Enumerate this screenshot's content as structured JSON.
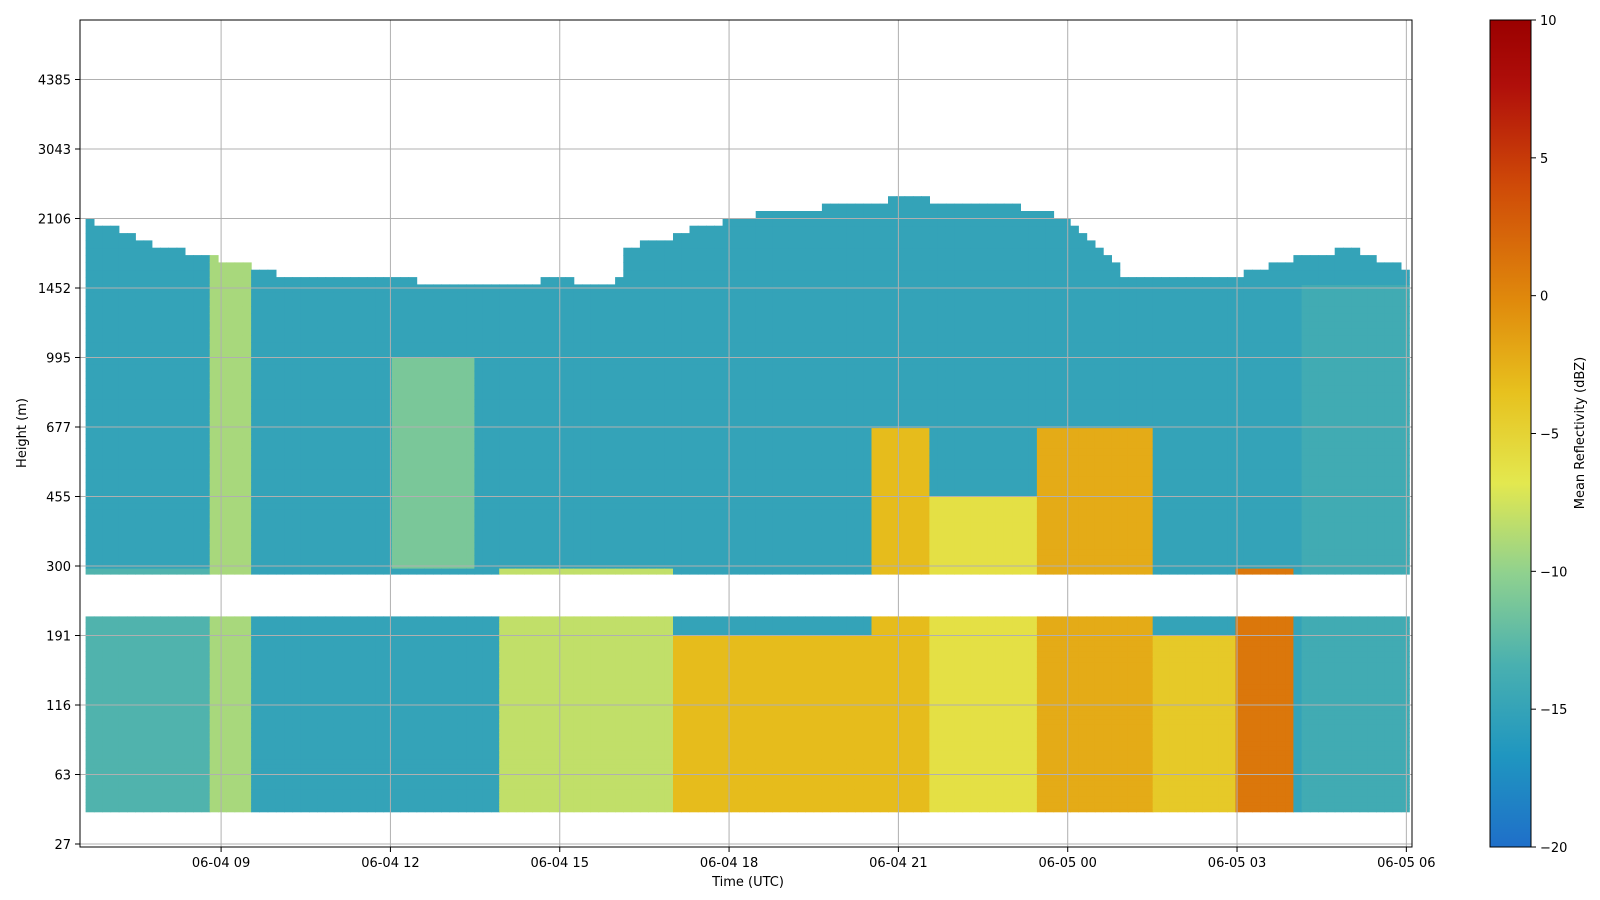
{
  "chart_data": {
    "type": "heatmap",
    "xlabel": "Time (UTC)",
    "ylabel": "Height (m)",
    "colorbar_label": "Mean Reflectivity (dBZ)",
    "xlim": [
      6.5,
      30.1
    ],
    "x_tick_values": [
      9,
      12,
      15,
      18,
      21,
      24,
      27,
      30
    ],
    "x_tick_labels": [
      "06-04 09",
      "06-04 12",
      "06-04 15",
      "06-04 18",
      "06-04 21",
      "06-05 00",
      "06-05 03",
      "06-05 06"
    ],
    "y_tick_labels": [
      "27",
      "63",
      "116",
      "191",
      "300",
      "455",
      "677",
      "995",
      "1452",
      "2106",
      "3043",
      "4385"
    ],
    "grid": true,
    "colorbar": {
      "min": -20,
      "max": 10,
      "ticks": [
        -20,
        -15,
        -10,
        -5,
        0,
        5,
        10
      ],
      "tick_labels": [
        "−20",
        "−15",
        "−10",
        "−5",
        "0",
        "5",
        "10"
      ],
      "colormap": [
        "#1f6fc9",
        "#1f96c0",
        "#49b0b0",
        "#8fd18f",
        "#e3e84f",
        "#e7c11e",
        "#e08a0c",
        "#cf4a08",
        "#b00f0a",
        "#9a0000"
      ]
    },
    "missing_band_height": [
      191,
      300
    ],
    "cloud_top_profile_m": [
      [
        6.6,
        2106
      ],
      [
        8.0,
        1800
      ],
      [
        9.0,
        1700
      ],
      [
        10.0,
        1560
      ],
      [
        12.0,
        1520
      ],
      [
        13.5,
        1480
      ],
      [
        14.3,
        1500
      ],
      [
        15.0,
        1520
      ],
      [
        16.0,
        1470
      ],
      [
        16.2,
        1800
      ],
      [
        17.0,
        1920
      ],
      [
        18.0,
        2100
      ],
      [
        19.0,
        2200
      ],
      [
        20.0,
        2250
      ],
      [
        21.0,
        2350
      ],
      [
        22.0,
        2300
      ],
      [
        23.0,
        2250
      ],
      [
        24.0,
        2106
      ],
      [
        24.5,
        1800
      ],
      [
        25.0,
        1560
      ],
      [
        27.0,
        1560
      ],
      [
        28.0,
        1700
      ],
      [
        29.0,
        1800
      ],
      [
        30.0,
        1600
      ]
    ],
    "reflectivity_features_dBZ": [
      {
        "x_range": [
          6.6,
          9.5
        ],
        "height_range": [
          27,
          300
        ],
        "value": -13
      },
      {
        "x_range": [
          8.8,
          9.5
        ],
        "height_range": [
          27,
          2106
        ],
        "value": -9
      },
      {
        "x_range": [
          10.0,
          12.5
        ],
        "height_range": [
          27,
          1452
        ],
        "value": -15
      },
      {
        "x_range": [
          12.0,
          13.5
        ],
        "height_range": [
          300,
          1000
        ],
        "value": -11
      },
      {
        "x_range": [
          14.0,
          17.0
        ],
        "height_range": [
          27,
          300
        ],
        "value": -8
      },
      {
        "x_range": [
          17.0,
          21.0
        ],
        "height_range": [
          27,
          191
        ],
        "value": -3
      },
      {
        "x_range": [
          20.5,
          21.5
        ],
        "height_range": [
          27,
          677
        ],
        "value": -3
      },
      {
        "x_range": [
          21.0,
          23.5
        ],
        "height_range": [
          27,
          455
        ],
        "value": -6
      },
      {
        "x_range": [
          23.5,
          25.5
        ],
        "height_range": [
          27,
          677
        ],
        "value": -2
      },
      {
        "x_range": [
          25.5,
          27.0
        ],
        "height_range": [
          27,
          191
        ],
        "value": -4
      },
      {
        "x_range": [
          27.0,
          28.0
        ],
        "height_range": [
          27,
          300
        ],
        "value": 1
      },
      {
        "x_range": [
          28.2,
          30.1
        ],
        "height_range": [
          27,
          1452
        ],
        "value": -14
      }
    ]
  }
}
